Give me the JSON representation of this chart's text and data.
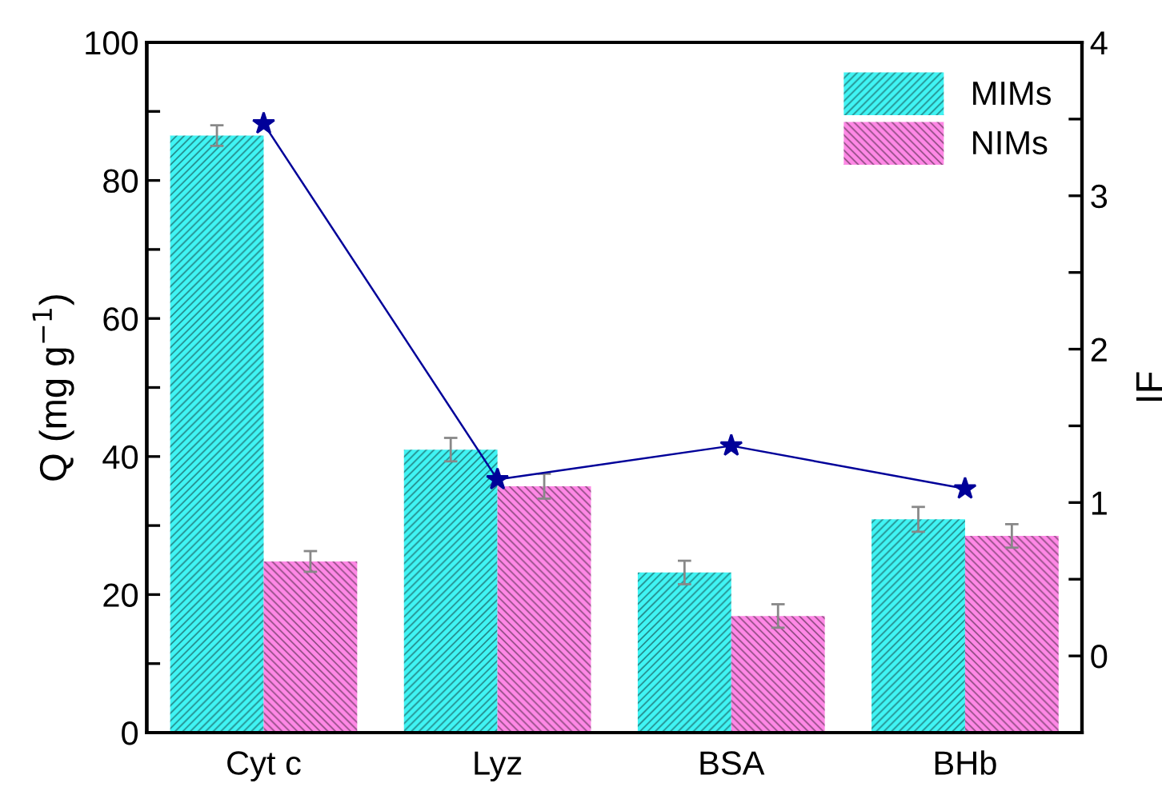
{
  "chart_data": {
    "type": "bar",
    "categories": [
      "Cyt c",
      "Lyz",
      "BSA",
      "BHb"
    ],
    "ylabel": "Q (mg g$^{−1}$)",
    "y2label": "IF",
    "series": [
      {
        "name": "MIMs",
        "color": "#40f4f4",
        "values": [
          86.5,
          41.0,
          23.2,
          30.9
        ],
        "errors": [
          1.5,
          1.7,
          1.7,
          1.8
        ]
      },
      {
        "name": "NIMs",
        "color": "#ff88e6",
        "values": [
          24.8,
          35.7,
          16.9,
          28.5
        ],
        "errors": [
          1.5,
          1.8,
          1.7,
          1.7
        ]
      },
      {
        "type": "line",
        "axis": "y2",
        "color": "#000099",
        "marker": "star",
        "values": [
          3.47,
          1.15,
          1.37,
          1.09
        ]
      }
    ],
    "ylim": [
      0,
      100
    ],
    "yticks": [
      0,
      {
        "value": 10,
        "label": null
      },
      20,
      {
        "value": 30,
        "label": null
      },
      40,
      {
        "value": 50,
        "label": null
      },
      60,
      {
        "value": 70,
        "label": null
      },
      80,
      {
        "value": 90,
        "label": null
      },
      100
    ],
    "y2lim": [
      -0.5,
      4
    ],
    "y2ticks": [
      0,
      {
        "value": 0.5,
        "label": null
      },
      1,
      {
        "value": 1.5,
        "label": null
      },
      2,
      {
        "value": 2.5,
        "label": null
      },
      3,
      {
        "value": 3.5,
        "label": null
      },
      4
    ],
    "grid": false,
    "legend": "top right"
  }
}
